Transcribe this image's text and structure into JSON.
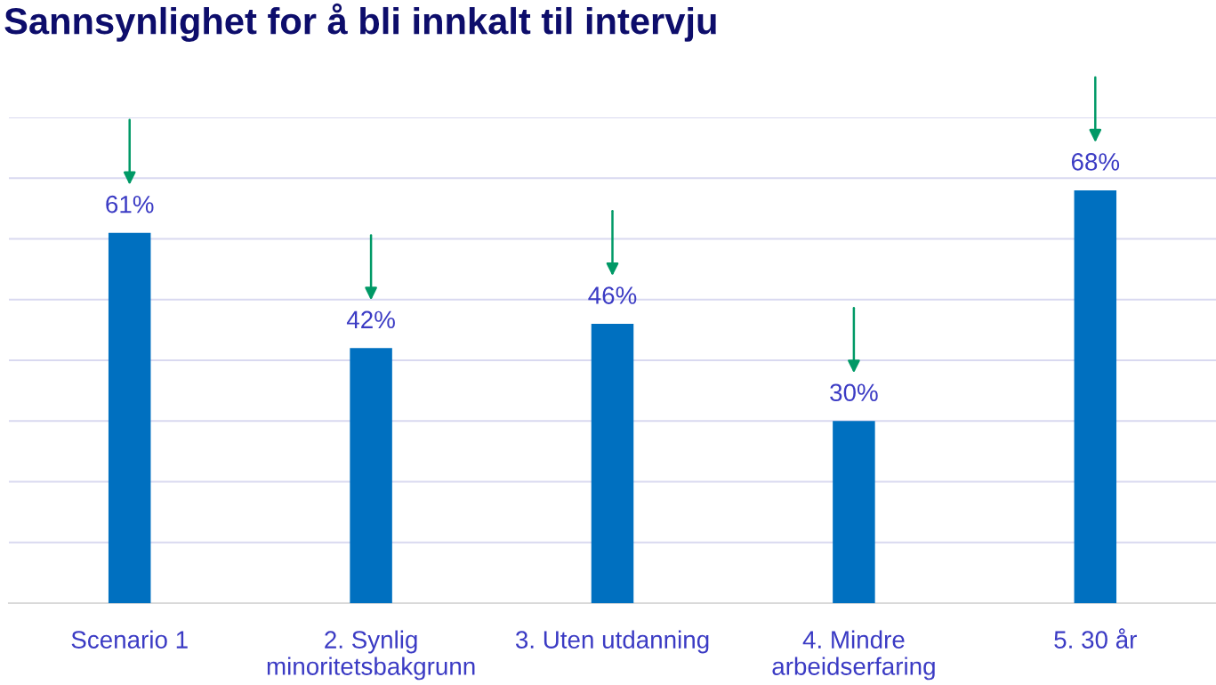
{
  "chart_data": {
    "type": "bar",
    "title": "Sannsynlighet for å bli innkalt til intervju",
    "categories": [
      "Scenario 1",
      "2. Synlig\nminoritetsbakgrunn",
      "3. Uten utdanning",
      "4. Mindre\narbeidserfaring",
      "5. 30 år"
    ],
    "values": [
      61,
      42,
      46,
      30,
      68
    ],
    "value_labels": [
      "61%",
      "42%",
      "46%",
      "30%",
      "68%"
    ],
    "color": "#0070c0",
    "ylim": [
      0,
      80
    ],
    "yticks": [
      {
        "value": 0,
        "label": null
      },
      {
        "value": 10,
        "label": null
      },
      {
        "value": 20,
        "label": null
      },
      {
        "value": 30,
        "label": null
      },
      {
        "value": 40,
        "label": null
      },
      {
        "value": 50,
        "label": null
      },
      {
        "value": 60,
        "label": null
      },
      {
        "value": 70,
        "label": null
      },
      {
        "value": 80,
        "label": null
      }
    ],
    "grid": "y",
    "tick_labels": "x"
  }
}
